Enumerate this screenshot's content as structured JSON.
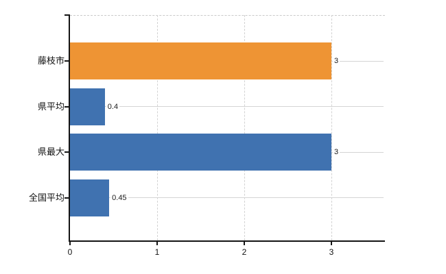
{
  "chart_data": {
    "type": "bar",
    "orientation": "horizontal",
    "title": "",
    "categories": [
      "藤枝市",
      "県平均",
      "県最大",
      "全国平均"
    ],
    "values": [
      3,
      0.4,
      3,
      0.45
    ],
    "data_labels": [
      "3",
      "0.4",
      "3",
      "0.45"
    ],
    "bar_colors": [
      "#ee9434",
      "#4072b0",
      "#4072b0",
      "#4072b0"
    ],
    "x_axis": {
      "tick_labels": [
        "0",
        "1",
        "2",
        "3"
      ],
      "tick_values": [
        0,
        1,
        2,
        3
      ],
      "min": 0,
      "max": 3.62
    },
    "grid": true,
    "legend": false,
    "colors": {
      "highlight_bar": "#ee9434",
      "default_bar": "#4072b0",
      "axis": "#141414",
      "gridline": "#d4d4d4",
      "text": "#111111",
      "background": "#ffffff"
    }
  }
}
